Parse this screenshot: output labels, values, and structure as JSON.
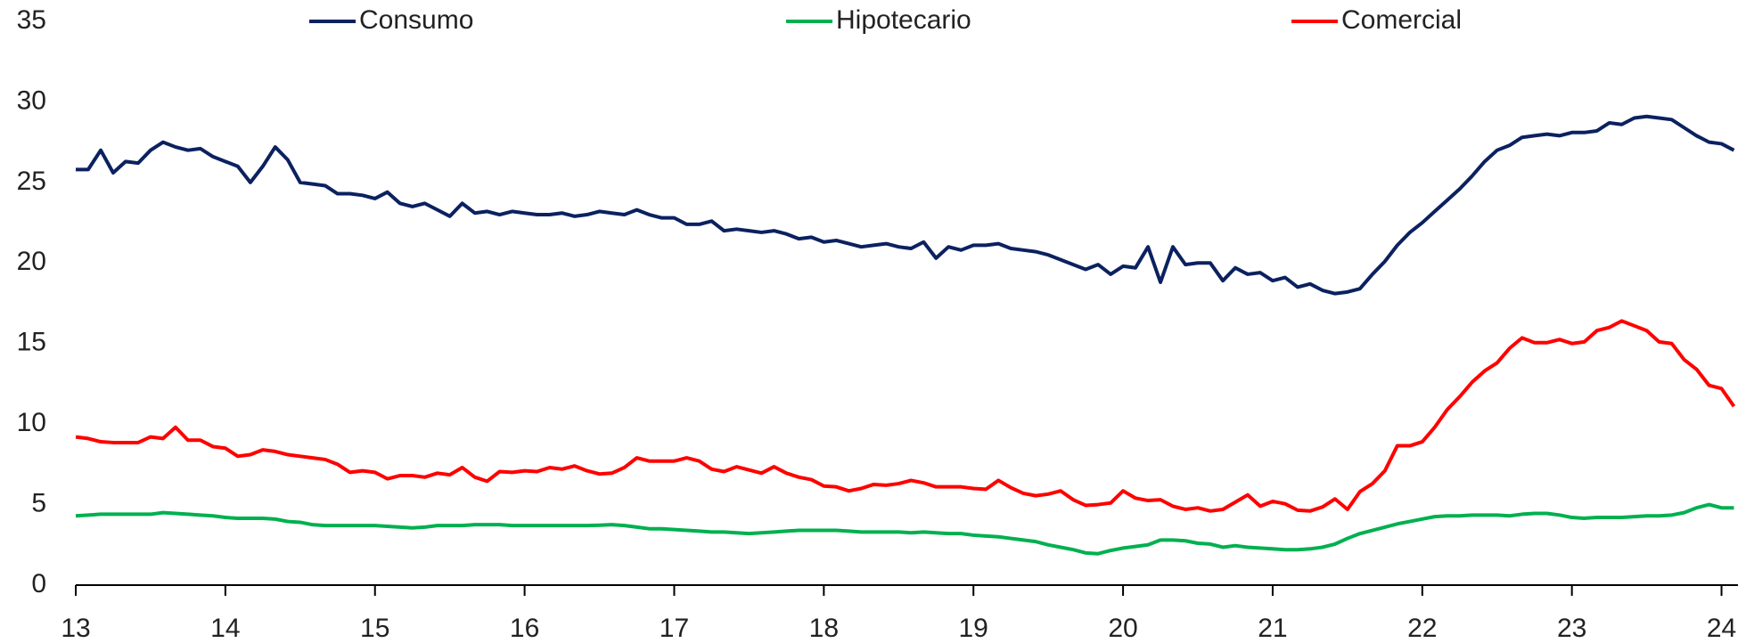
{
  "chart_data": {
    "type": "line",
    "x": [
      13,
      13.083,
      13.167,
      13.25,
      13.333,
      13.417,
      13.5,
      13.583,
      13.667,
      13.75,
      13.833,
      13.917,
      14,
      14.083,
      14.167,
      14.25,
      14.333,
      14.417,
      14.5,
      14.583,
      14.667,
      14.75,
      14.833,
      14.917,
      15,
      15.083,
      15.167,
      15.25,
      15.333,
      15.417,
      15.5,
      15.583,
      15.667,
      15.75,
      15.833,
      15.917,
      16,
      16.083,
      16.167,
      16.25,
      16.333,
      16.417,
      16.5,
      16.583,
      16.667,
      16.75,
      16.833,
      16.917,
      17,
      17.083,
      17.167,
      17.25,
      17.333,
      17.417,
      17.5,
      17.583,
      17.667,
      17.75,
      17.833,
      17.917,
      18,
      18.083,
      18.167,
      18.25,
      18.333,
      18.417,
      18.5,
      18.583,
      18.667,
      18.75,
      18.833,
      18.917,
      19,
      19.083,
      19.167,
      19.25,
      19.333,
      19.417,
      19.5,
      19.583,
      19.667,
      19.75,
      19.833,
      19.917,
      20,
      20.083,
      20.167,
      20.25,
      20.333,
      20.417,
      20.5,
      20.583,
      20.667,
      20.75,
      20.833,
      20.917,
      21,
      21.083,
      21.167,
      21.25,
      21.333,
      21.417,
      21.5,
      21.583,
      21.667,
      21.75,
      21.833,
      21.917,
      22,
      22.083,
      22.167,
      22.25,
      22.333,
      22.417,
      22.5,
      22.583,
      22.667,
      22.75,
      22.833,
      22.917,
      23,
      23.083,
      23.167,
      23.25,
      23.333,
      23.417,
      23.5,
      23.583,
      23.667,
      23.75,
      23.833,
      23.917,
      24,
      24.083
    ],
    "series": [
      {
        "name": "Consumo",
        "color": "#0b2160",
        "values": [
          25.8,
          25.8,
          27.0,
          25.6,
          26.3,
          26.2,
          27.0,
          27.5,
          27.2,
          27.0,
          27.1,
          26.6,
          26.3,
          26.0,
          25.0,
          26.0,
          27.2,
          26.4,
          25.0,
          24.9,
          24.8,
          24.3,
          24.3,
          24.2,
          24.0,
          24.4,
          23.7,
          23.5,
          23.7,
          23.3,
          22.9,
          23.7,
          23.1,
          23.2,
          23.0,
          23.2,
          23.1,
          23.0,
          23.0,
          23.1,
          22.9,
          23.0,
          23.2,
          23.1,
          23.0,
          23.3,
          23.0,
          22.8,
          22.8,
          22.4,
          22.4,
          22.6,
          22.0,
          22.1,
          22.0,
          21.9,
          22.0,
          21.8,
          21.5,
          21.6,
          21.3,
          21.4,
          21.2,
          21.0,
          21.1,
          21.2,
          21.0,
          20.9,
          21.3,
          20.3,
          21.0,
          20.8,
          21.1,
          21.1,
          21.2,
          20.9,
          20.8,
          20.7,
          20.5,
          20.2,
          19.9,
          19.6,
          19.9,
          19.3,
          19.8,
          19.7,
          21.0,
          18.8,
          21.0,
          19.9,
          20.0,
          20.0,
          18.9,
          19.7,
          19.3,
          19.4,
          18.9,
          19.1,
          18.5,
          18.7,
          18.3,
          18.1,
          18.2,
          18.4,
          19.3,
          20.1,
          21.1,
          21.9,
          22.5,
          23.2,
          23.9,
          24.6,
          25.4,
          26.3,
          27.0,
          27.3,
          27.8,
          27.9,
          28.0,
          27.9,
          28.1,
          28.1,
          28.2,
          28.7,
          28.6,
          29.0,
          29.1,
          29.0,
          28.9,
          28.4,
          27.9,
          27.5,
          27.4,
          27.0
        ]
      },
      {
        "name": "Hipotecario",
        "color": "#00b050",
        "values": [
          4.3,
          4.35,
          4.4,
          4.4,
          4.4,
          4.4,
          4.4,
          4.5,
          4.45,
          4.4,
          4.35,
          4.3,
          4.2,
          4.15,
          4.15,
          4.15,
          4.1,
          3.95,
          3.9,
          3.75,
          3.7,
          3.7,
          3.7,
          3.7,
          3.7,
          3.65,
          3.6,
          3.55,
          3.6,
          3.7,
          3.7,
          3.7,
          3.75,
          3.75,
          3.75,
          3.7,
          3.7,
          3.7,
          3.7,
          3.7,
          3.7,
          3.7,
          3.72,
          3.75,
          3.7,
          3.6,
          3.5,
          3.5,
          3.45,
          3.4,
          3.35,
          3.3,
          3.3,
          3.25,
          3.2,
          3.25,
          3.3,
          3.35,
          3.4,
          3.4,
          3.4,
          3.4,
          3.35,
          3.3,
          3.3,
          3.3,
          3.3,
          3.25,
          3.3,
          3.25,
          3.2,
          3.2,
          3.1,
          3.05,
          3.0,
          2.9,
          2.8,
          2.7,
          2.5,
          2.35,
          2.2,
          2.0,
          1.95,
          2.15,
          2.3,
          2.4,
          2.5,
          2.8,
          2.8,
          2.75,
          2.6,
          2.55,
          2.35,
          2.45,
          2.35,
          2.3,
          2.25,
          2.2,
          2.2,
          2.25,
          2.35,
          2.55,
          2.9,
          3.2,
          3.4,
          3.6,
          3.8,
          3.95,
          4.1,
          4.25,
          4.3,
          4.3,
          4.35,
          4.35,
          4.35,
          4.3,
          4.4,
          4.45,
          4.45,
          4.35,
          4.2,
          4.15,
          4.2,
          4.2,
          4.2,
          4.25,
          4.3,
          4.3,
          4.35,
          4.5,
          4.8,
          5.0,
          4.8,
          4.8
        ]
      },
      {
        "name": "Comercial",
        "color": "#ff0000",
        "values": [
          9.2,
          9.1,
          8.9,
          8.85,
          8.85,
          8.85,
          9.2,
          9.1,
          9.8,
          9.0,
          9.0,
          8.6,
          8.5,
          8.0,
          8.1,
          8.4,
          8.3,
          8.1,
          8.0,
          7.9,
          7.8,
          7.5,
          7.0,
          7.1,
          7.0,
          6.6,
          6.8,
          6.8,
          6.7,
          6.95,
          6.85,
          7.3,
          6.7,
          6.45,
          7.05,
          7.0,
          7.1,
          7.05,
          7.3,
          7.2,
          7.4,
          7.1,
          6.9,
          6.95,
          7.3,
          7.9,
          7.7,
          7.7,
          7.7,
          7.9,
          7.7,
          7.2,
          7.05,
          7.35,
          7.15,
          6.95,
          7.35,
          6.95,
          6.7,
          6.55,
          6.15,
          6.1,
          5.85,
          6.0,
          6.25,
          6.2,
          6.3,
          6.5,
          6.35,
          6.1,
          6.1,
          6.1,
          6.0,
          5.95,
          6.5,
          6.05,
          5.7,
          5.55,
          5.65,
          5.85,
          5.3,
          4.95,
          5.0,
          5.1,
          5.85,
          5.4,
          5.25,
          5.3,
          4.9,
          4.7,
          4.8,
          4.6,
          4.7,
          5.15,
          5.6,
          4.9,
          5.2,
          5.05,
          4.65,
          4.6,
          4.85,
          5.35,
          4.7,
          5.8,
          6.3,
          7.1,
          8.65,
          8.65,
          8.9,
          9.8,
          10.9,
          11.7,
          12.6,
          13.3,
          13.8,
          14.7,
          15.35,
          15.05,
          15.05,
          15.25,
          15.0,
          15.1,
          15.8,
          16.0,
          16.4,
          16.1,
          15.8,
          15.1,
          15.0,
          14.0,
          13.4,
          12.4,
          12.2,
          11.1
        ]
      }
    ],
    "xlim": [
      13,
      24.11
    ],
    "xticks": [
      13,
      14,
      15,
      16,
      17,
      18,
      19,
      20,
      21,
      22,
      23,
      24
    ],
    "ylim": [
      0,
      35
    ],
    "yticks": [
      0,
      5,
      10,
      15,
      20,
      25,
      30,
      35
    ],
    "grid": false,
    "legend": "top"
  }
}
